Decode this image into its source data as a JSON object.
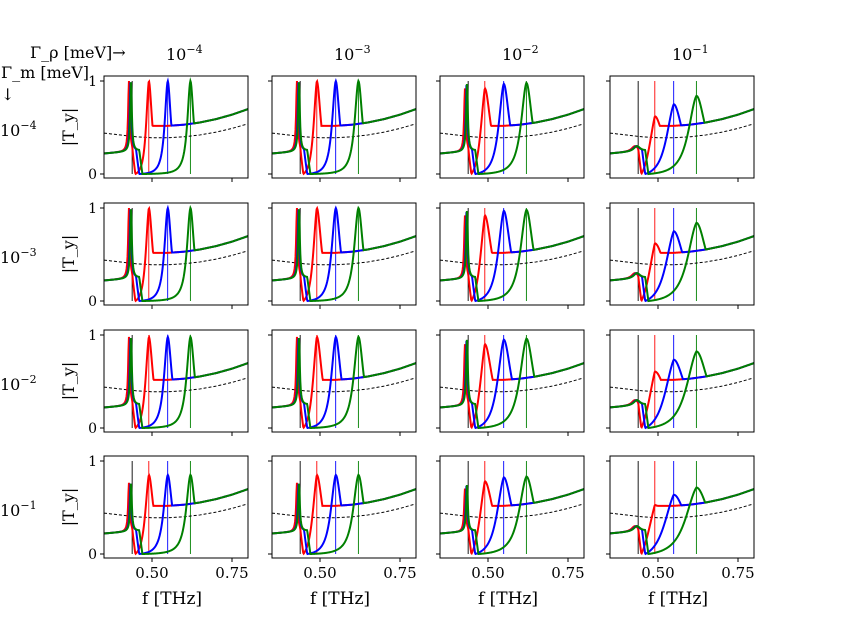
{
  "chart_data": {
    "type": "line",
    "layout": "4x4 grid of subplots",
    "row_header_label": "Γ_m [meV]",
    "row_header_arrow": "↓",
    "col_header_label": "Γ_ρ [meV]→",
    "columns": [
      {
        "base": "10",
        "exp": "−4"
      },
      {
        "base": "10",
        "exp": "−3"
      },
      {
        "base": "10",
        "exp": "−2"
      },
      {
        "base": "10",
        "exp": "−1"
      }
    ],
    "rows": [
      {
        "base": "10",
        "exp": "−4"
      },
      {
        "base": "10",
        "exp": "−3"
      },
      {
        "base": "10",
        "exp": "−2"
      },
      {
        "base": "10",
        "exp": "−1"
      }
    ],
    "ylabel": "|T_y|",
    "xlabel": "f [THz]",
    "x_ticks": [
      "0.50",
      "0.75"
    ],
    "y_ticks": [
      "0",
      "1"
    ],
    "xlim": [
      0.35,
      0.8
    ],
    "ylim": [
      0,
      1.02
    ],
    "grid": false,
    "legend": "none",
    "vertical_markers": [
      {
        "color": "black",
        "x": 0.438
      },
      {
        "color": "red",
        "x": 0.49
      },
      {
        "color": "blue",
        "x": 0.549
      },
      {
        "color": "green",
        "x": 0.62
      }
    ],
    "dashed_reference": {
      "color": "black",
      "style": "dashed",
      "x": [
        0.35,
        0.4,
        0.45,
        0.5,
        0.55,
        0.6,
        0.65,
        0.7,
        0.75,
        0.8
      ],
      "y": [
        0.44,
        0.42,
        0.4,
        0.39,
        0.39,
        0.4,
        0.42,
        0.45,
        0.49,
        0.54
      ]
    },
    "series": [
      {
        "color": "red",
        "resonance": 0.49,
        "peak_by_column": [
          1.0,
          1.0,
          0.92,
          0.62
        ],
        "min_x": 0.448
      },
      {
        "color": "blue",
        "resonance": 0.549,
        "peak_by_column": [
          1.0,
          1.0,
          0.97,
          0.75
        ],
        "min_x": 0.46
      },
      {
        "color": "green",
        "resonance": 0.62,
        "peak_by_column": [
          1.0,
          1.0,
          0.98,
          0.84
        ],
        "min_x": 0.47
      }
    ],
    "row_peak_scale": [
      1.0,
      1.0,
      0.98,
      0.85
    ]
  },
  "colors": {
    "red": "#ff0000",
    "blue": "#0000ff",
    "green": "#008000",
    "black": "#000000"
  }
}
